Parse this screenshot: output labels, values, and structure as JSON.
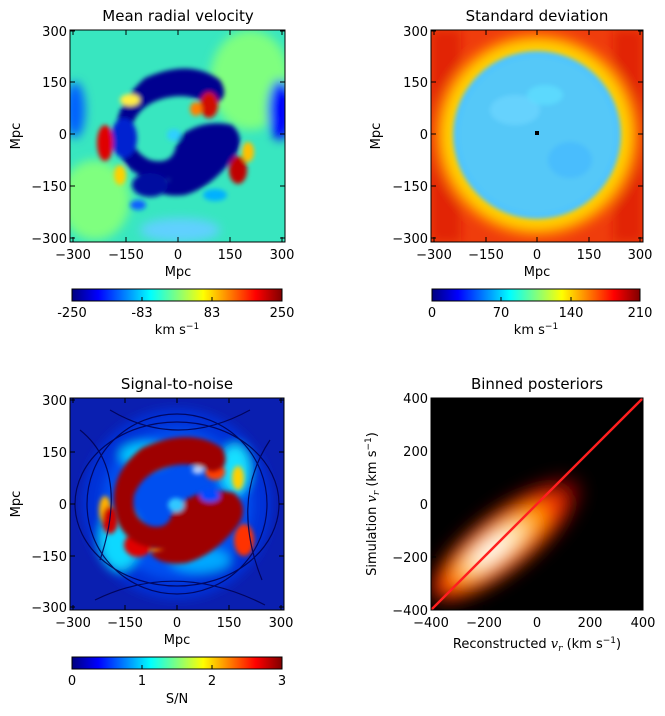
{
  "chart_data": [
    {
      "type": "heatmap",
      "title": "Mean radial velocity",
      "xlabel": "Mpc",
      "ylabel": "Mpc",
      "xticks": [
        "−300",
        "−150",
        "0",
        "150",
        "300"
      ],
      "yticks": [
        "300",
        "150",
        "0",
        "−150",
        "−300"
      ],
      "xlim": [
        -310,
        310
      ],
      "ylim": [
        -310,
        310
      ],
      "colormap": "jet",
      "colorbar": {
        "ticks": [
          "-250",
          "-83",
          "83",
          "250"
        ],
        "range": [
          -250,
          250
        ],
        "label": "km s",
        "label_sup": "−1"
      }
    },
    {
      "type": "heatmap",
      "title": "Standard deviation",
      "xlabel": "Mpc",
      "ylabel": "Mpc",
      "xticks": [
        "−300",
        "−150",
        "0",
        "150",
        "300"
      ],
      "yticks": [
        "300",
        "150",
        "0",
        "−150",
        "−300"
      ],
      "xlim": [
        -310,
        310
      ],
      "ylim": [
        -310,
        310
      ],
      "colormap": "jet",
      "colorbar": {
        "ticks": [
          "0",
          "70",
          "140",
          "210"
        ],
        "range": [
          0,
          210
        ],
        "label": "km s",
        "label_sup": "−1"
      }
    },
    {
      "type": "heatmap",
      "title": "Signal-to-noise",
      "xlabel": "Mpc",
      "ylabel": "Mpc",
      "xticks": [
        "−300",
        "−150",
        "0",
        "150",
        "300"
      ],
      "yticks": [
        "300",
        "150",
        "0",
        "−150",
        "−300"
      ],
      "xlim": [
        -310,
        310
      ],
      "ylim": [
        -310,
        310
      ],
      "colormap": "jet",
      "colorbar": {
        "ticks": [
          "0",
          "1",
          "2",
          "3"
        ],
        "range": [
          0,
          3
        ],
        "label": "S/N"
      }
    },
    {
      "type": "heatmap",
      "title": "Binned posteriors",
      "xlabel": "Reconstructed",
      "xlabel_var": "v",
      "xlabel_sub": "r",
      "xlabel_unit": "(km s",
      "xlabel_unit_sup": "−1",
      "xlabel_close": ")",
      "ylabel": "Simulation",
      "ylabel_var": "v",
      "ylabel_sub": "r",
      "ylabel_unit": "(km s",
      "ylabel_unit_sup": "−1",
      "ylabel_close": ")",
      "xticks": [
        "−400",
        "−200",
        "0",
        "200",
        "400"
      ],
      "yticks": [
        "400",
        "200",
        "0",
        "−200",
        "−400"
      ],
      "xlim": [
        -400,
        400
      ],
      "ylim": [
        -400,
        400
      ],
      "colormap": "hot",
      "identity_line": {
        "from": [
          -400,
          -400
        ],
        "to": [
          400,
          400
        ],
        "color": "#ff1f1f"
      }
    }
  ]
}
